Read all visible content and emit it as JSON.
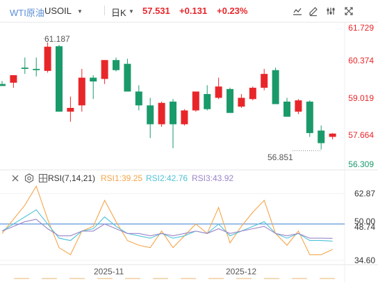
{
  "header": {
    "instrument": "WTI原油",
    "symbol": "USOIL",
    "period": "日K",
    "price": "57.531",
    "change": "+0.131",
    "change_pct": "+0.23%"
  },
  "toolbar": {
    "icons": [
      "line-chart-icon",
      "edit-icon",
      "settings-icon",
      "fullscreen-icon"
    ]
  },
  "colors": {
    "up": "#e8262a",
    "down": "#1a9a6a",
    "up_text": "#e8262a",
    "down_text": "#1a9a6a",
    "rsi1": "#f5a54a",
    "rsi2": "#4fc2d6",
    "rsi3": "#9a84c9",
    "level_line": "#3b7fd4"
  },
  "price_axis": {
    "labels": [
      "61.729",
      "60.374",
      "59.019",
      "57.664",
      "56.309"
    ],
    "label_colors": [
      "#e8262a",
      "#e8262a",
      "#e8262a",
      "#e8262a",
      "#1a9a6a"
    ],
    "high_mark": "61.187",
    "low_mark": "56.851"
  },
  "rsi": {
    "name": "RSI(7,14,21)",
    "rsi1": "RSI1:39.25",
    "rsi2": "RSI2:42.76",
    "rsi3": "RSI3:43.92",
    "axis_labels": [
      "62.87",
      "50.00",
      "48.74",
      "34.60"
    ],
    "level_value": "50.00",
    "last_value": "48.74"
  },
  "x_axis": {
    "labels": [
      "2025-11",
      "2025-12"
    ]
  },
  "chart_data": [
    {
      "type": "candlestick",
      "title": "WTI原油 USOIL 日K",
      "ylim": [
        56.309,
        61.729
      ],
      "candles": [
        {
          "o": 59.5,
          "h": 59.62,
          "l": 59.42,
          "c": 59.42
        },
        {
          "o": 59.55,
          "h": 59.85,
          "l": 59.35,
          "c": 59.85
        },
        {
          "o": 60.15,
          "h": 60.55,
          "l": 59.9,
          "c": 60.1
        },
        {
          "o": 60.1,
          "h": 60.55,
          "l": 59.8,
          "c": 60.05
        },
        {
          "o": 60.02,
          "h": 61.15,
          "l": 59.95,
          "c": 60.98
        },
        {
          "o": 61.0,
          "h": 61.05,
          "l": 58.4,
          "c": 58.4
        },
        {
          "o": 58.4,
          "h": 59.0,
          "l": 58.0,
          "c": 58.55
        },
        {
          "o": 58.65,
          "h": 60.1,
          "l": 58.4,
          "c": 59.75
        },
        {
          "o": 59.75,
          "h": 59.85,
          "l": 58.9,
          "c": 59.6
        },
        {
          "o": 59.7,
          "h": 60.45,
          "l": 59.5,
          "c": 60.45
        },
        {
          "o": 60.45,
          "h": 60.55,
          "l": 60.0,
          "c": 60.05
        },
        {
          "o": 60.3,
          "h": 60.5,
          "l": 59.2,
          "c": 59.2
        },
        {
          "o": 59.2,
          "h": 59.45,
          "l": 58.45,
          "c": 58.65
        },
        {
          "o": 58.65,
          "h": 58.95,
          "l": 57.35,
          "c": 57.9
        },
        {
          "o": 57.9,
          "h": 58.8,
          "l": 57.8,
          "c": 58.75
        },
        {
          "o": 58.8,
          "h": 58.9,
          "l": 56.95,
          "c": 57.9
        },
        {
          "o": 57.9,
          "h": 58.5,
          "l": 57.85,
          "c": 58.45
        },
        {
          "o": 58.45,
          "h": 59.2,
          "l": 58.4,
          "c": 59.2
        },
        {
          "o": 59.1,
          "h": 59.45,
          "l": 58.45,
          "c": 58.5
        },
        {
          "o": 58.95,
          "h": 59.75,
          "l": 58.9,
          "c": 59.4
        },
        {
          "o": 59.3,
          "h": 59.35,
          "l": 58.35,
          "c": 58.35
        },
        {
          "o": 58.6,
          "h": 59.1,
          "l": 58.55,
          "c": 58.95
        },
        {
          "o": 58.9,
          "h": 59.4,
          "l": 58.85,
          "c": 59.35
        },
        {
          "o": 59.35,
          "h": 60.1,
          "l": 59.25,
          "c": 59.9
        },
        {
          "o": 60.05,
          "h": 60.15,
          "l": 58.7,
          "c": 58.7
        },
        {
          "o": 58.8,
          "h": 58.95,
          "l": 58.2,
          "c": 58.2
        },
        {
          "o": 58.4,
          "h": 58.9,
          "l": 58.3,
          "c": 58.85
        },
        {
          "o": 58.8,
          "h": 58.85,
          "l": 57.4,
          "c": 57.55
        },
        {
          "o": 57.65,
          "h": 57.85,
          "l": 56.9,
          "c": 57.15
        },
        {
          "o": 57.4,
          "h": 57.55,
          "l": 57.3,
          "c": 57.53
        }
      ]
    },
    {
      "type": "line",
      "title": "RSI(7,14,21)",
      "ylim": [
        34.6,
        62.87
      ],
      "level": 50.0,
      "series": [
        {
          "name": "RSI1",
          "values": [
            46,
            52,
            58,
            66,
            52,
            40,
            37,
            47,
            49,
            60,
            51,
            43,
            41,
            40,
            47,
            40,
            45,
            50,
            46,
            57,
            42,
            49,
            55,
            60,
            46,
            41,
            47,
            37,
            37,
            39.25
          ]
        },
        {
          "name": "RSI2",
          "values": [
            47,
            50,
            53,
            56,
            50,
            44,
            43,
            47,
            48,
            53,
            49,
            46,
            45,
            44,
            46,
            44,
            45,
            47,
            46,
            50,
            45,
            47,
            49,
            51,
            46,
            44,
            46,
            43,
            43,
            42.76
          ]
        },
        {
          "name": "RSI3",
          "values": [
            47,
            49,
            51,
            52,
            48,
            45,
            45,
            47,
            47,
            50,
            48,
            46,
            46,
            45,
            46,
            45,
            46,
            47,
            46,
            48,
            46,
            47,
            48,
            49,
            46,
            45,
            46,
            44,
            44,
            43.92
          ]
        }
      ]
    }
  ]
}
